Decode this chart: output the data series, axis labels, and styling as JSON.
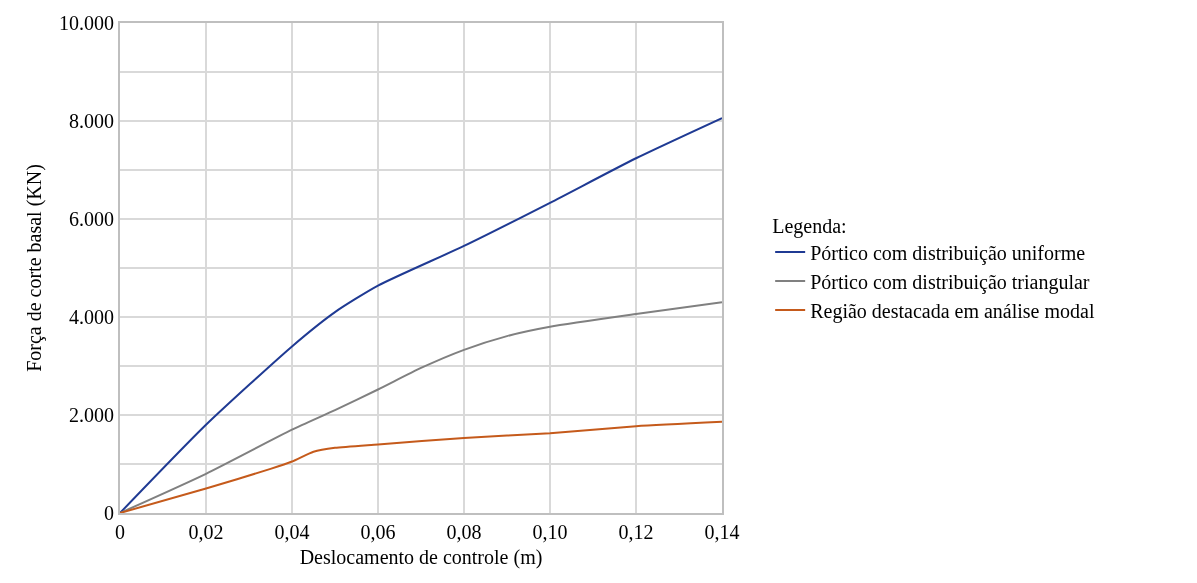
{
  "chart_data": {
    "type": "line",
    "xlabel": "Deslocamento de controle (m)",
    "ylabel": "Força de corte basal (KN)",
    "legend_title": "Legenda:",
    "xlim": [
      0,
      0.14
    ],
    "ylim": [
      0,
      10000
    ],
    "xticks": [
      {
        "value": 0,
        "label": "0"
      },
      {
        "value": 0.02,
        "label": "0,02"
      },
      {
        "value": 0.04,
        "label": "0,04"
      },
      {
        "value": 0.06,
        "label": "0,06"
      },
      {
        "value": 0.08,
        "label": "0,08"
      },
      {
        "value": 0.1,
        "label": "0,10"
      },
      {
        "value": 0.12,
        "label": "0,12"
      },
      {
        "value": 0.14,
        "label": "0,14"
      }
    ],
    "yticks": [
      0,
      {
        "value": 1000,
        "label": null
      },
      {
        "value": 2000,
        "label": "2.000"
      },
      {
        "value": 3000,
        "label": null
      },
      {
        "value": 4000,
        "label": "4.000"
      },
      {
        "value": 5000,
        "label": null
      },
      {
        "value": 6000,
        "label": "6.000"
      },
      {
        "value": 7000,
        "label": null
      },
      {
        "value": 8000,
        "label": "8.000"
      },
      {
        "value": 9000,
        "label": null
      },
      {
        "value": 10000,
        "label": "10.000"
      }
    ],
    "grid": true,
    "legend": "right",
    "marker": "none",
    "line_style": "solid",
    "series": [
      {
        "name": "Pórtico com distribuição uniforme",
        "color": "#1f3a93",
        "x": [
          0,
          0.02,
          0.04,
          0.05,
          0.06,
          0.08,
          0.1,
          0.12,
          0.14
        ],
        "values": [
          0,
          1800,
          3400,
          4100,
          4640,
          5450,
          6330,
          7240,
          8060
        ]
      },
      {
        "name": "Pórtico com distribuição triangular",
        "color": "#808080",
        "x": [
          0,
          0.02,
          0.04,
          0.05,
          0.06,
          0.07,
          0.08,
          0.09,
          0.1,
          0.12,
          0.14
        ],
        "values": [
          0,
          800,
          1700,
          2100,
          2520,
          2960,
          3330,
          3610,
          3800,
          4060,
          4300
        ]
      },
      {
        "name": "Região destacada em análise modal",
        "color": "#c55a1b",
        "x": [
          0,
          0.02,
          0.035,
          0.04,
          0.045,
          0.05,
          0.06,
          0.08,
          0.1,
          0.12,
          0.14
        ],
        "values": [
          0,
          500,
          900,
          1050,
          1250,
          1330,
          1400,
          1530,
          1630,
          1770,
          1860
        ]
      }
    ]
  }
}
